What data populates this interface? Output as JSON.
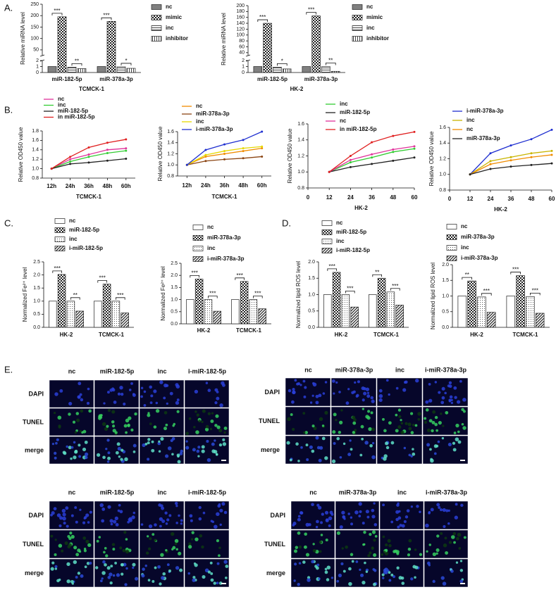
{
  "panel_labels": [
    "A.",
    "B.",
    "C.",
    "D.",
    "E."
  ],
  "chart_data": [
    {
      "type": "bar",
      "ylabel": "Relative miRNA level",
      "xlabel": "TCMCK-1",
      "categories": [
        "miR-182-5p",
        "miR-378a-3p"
      ],
      "series": [
        {
          "name": "nc",
          "color": "#808080",
          "pattern": "solid",
          "values": [
            1,
            1
          ]
        },
        {
          "name": "mimic",
          "color": "#222222",
          "pattern": "checker",
          "values": [
            195,
            175
          ]
        },
        {
          "name": "inc",
          "color": "#444444",
          "pattern": "hlines",
          "values": [
            0.9,
            0.95
          ]
        },
        {
          "name": "inhibitor",
          "color": "#444444",
          "pattern": "vlines",
          "values": [
            0.65,
            0.7
          ]
        }
      ],
      "ylim": [
        0,
        250
      ],
      "axis_break": [
        2,
        25
      ],
      "yticks": [
        0,
        1,
        2,
        50,
        100,
        150,
        200,
        250
      ],
      "significance": [
        [
          "***",
          "**"
        ],
        [
          "***",
          "*"
        ]
      ]
    },
    {
      "type": "bar",
      "ylabel": "Relative miRNA level",
      "xlabel": "HK-2",
      "categories": [
        "miR-182-5p",
        "miR-378a-3p"
      ],
      "series": [
        {
          "name": "nc",
          "color": "#808080",
          "pattern": "solid",
          "values": [
            1,
            1
          ]
        },
        {
          "name": "mimic",
          "color": "#222222",
          "pattern": "checker",
          "values": [
            140,
            165
          ]
        },
        {
          "name": "inc",
          "color": "#444444",
          "pattern": "hlines",
          "values": [
            0.9,
            1
          ]
        },
        {
          "name": "inhibitor",
          "color": "#444444",
          "pattern": "vlines",
          "values": [
            0.6,
            0.2
          ]
        }
      ],
      "ylim": [
        0,
        200
      ],
      "axis_break": [
        2,
        30
      ],
      "yticks": [
        0,
        1,
        2,
        40,
        60,
        80,
        100,
        120,
        140,
        160,
        180,
        200
      ],
      "significance": [
        [
          "***",
          "*"
        ],
        [
          "***",
          "**"
        ]
      ]
    },
    {
      "type": "line",
      "ylabel": "Relative OD450 value",
      "xlabel": "TCMCK-1",
      "categories": [
        "12h",
        "24h",
        "36h",
        "48h",
        "60h"
      ],
      "series": [
        {
          "name": "nc",
          "color": "#e0329a",
          "values": [
            1.0,
            1.2,
            1.3,
            1.4,
            1.43
          ]
        },
        {
          "name": "inc",
          "color": "#33cc33",
          "values": [
            1.0,
            1.15,
            1.25,
            1.33,
            1.38
          ]
        },
        {
          "name": "miR-182-5p",
          "color": "#222222",
          "values": [
            1.0,
            1.1,
            1.13,
            1.17,
            1.21
          ]
        },
        {
          "name": "in miR-182-5p",
          "color": "#e02020",
          "values": [
            1.0,
            1.25,
            1.45,
            1.55,
            1.62
          ]
        }
      ],
      "ylim": [
        0.8,
        1.8
      ],
      "yticks": [
        0.8,
        {
          "value": 1,
          "label": "1.0"
        },
        1.2,
        1.4,
        1.6,
        1.8
      ]
    },
    {
      "type": "line",
      "ylabel": "Relative OD450 value",
      "xlabel": "TCMCK-1",
      "categories": [
        "12h",
        "24h",
        "36h",
        "48h",
        "60h"
      ],
      "series": [
        {
          "name": "nc",
          "color": "#f08c00",
          "values": [
            1.0,
            1.15,
            1.2,
            1.25,
            1.3
          ]
        },
        {
          "name": "miR-378a-3p",
          "color": "#8b4513",
          "values": [
            1.0,
            1.07,
            1.1,
            1.12,
            1.15
          ]
        },
        {
          "name": "inc",
          "color": "#e6d800",
          "values": [
            1.0,
            1.18,
            1.25,
            1.3,
            1.33
          ]
        },
        {
          "name": "i-miR-378a-3p",
          "color": "#1f2fd0",
          "values": [
            1.0,
            1.27,
            1.37,
            1.45,
            1.6
          ]
        }
      ],
      "ylim": [
        0.8,
        1.6
      ],
      "yticks": [
        0.8,
        {
          "value": 1,
          "label": "1.0"
        },
        1.2,
        1.4,
        1.6
      ]
    },
    {
      "type": "line",
      "ylabel": "Relative OD450 value",
      "xlabel": "HK-2",
      "x": [
        12,
        24,
        36,
        48,
        60
      ],
      "series": [
        {
          "name": "inc",
          "color": "#33cc33",
          "values": [
            1.0,
            1.12,
            1.18,
            1.25,
            1.29
          ]
        },
        {
          "name": "miR-182-5p",
          "color": "#222222",
          "values": [
            1.0,
            1.06,
            1.1,
            1.14,
            1.18
          ]
        },
        {
          "name": "nc",
          "color": "#e0329a",
          "values": [
            1.0,
            1.15,
            1.22,
            1.28,
            1.32
          ]
        },
        {
          "name": "in miR-182-5p",
          "color": "#e02020",
          "values": [
            1.0,
            1.2,
            1.37,
            1.45,
            1.5
          ]
        }
      ],
      "xlim": [
        0,
        60
      ],
      "xticks": [
        0,
        12,
        24,
        36,
        48,
        60
      ],
      "ylim": [
        0.8,
        1.6
      ],
      "yticks": [
        0.8,
        {
          "value": 1,
          "label": "1.0"
        },
        1.2,
        1.4,
        1.6
      ]
    },
    {
      "type": "line",
      "ylabel": "Relative OD450 value",
      "xlabel": "HK-2",
      "x": [
        12,
        24,
        36,
        48,
        60
      ],
      "series": [
        {
          "name": "i-miR-378a-3p",
          "color": "#1f2fd0",
          "values": [
            1.0,
            1.27,
            1.37,
            1.45,
            1.57
          ]
        },
        {
          "name": "inc",
          "color": "#c8b400",
          "values": [
            1.0,
            1.17,
            1.22,
            1.27,
            1.3
          ]
        },
        {
          "name": "nc",
          "color": "#f08c00",
          "values": [
            1.0,
            1.13,
            1.18,
            1.22,
            1.25
          ]
        },
        {
          "name": "miR-378a-3p",
          "color": "#222222",
          "values": [
            1.0,
            1.07,
            1.1,
            1.12,
            1.14
          ]
        }
      ],
      "xlim": [
        0,
        60
      ],
      "xticks": [
        0,
        12,
        24,
        36,
        48,
        60
      ],
      "ylim": [
        0.8,
        1.6
      ],
      "yticks": [
        0.8,
        {
          "value": 1,
          "label": "1.0"
        },
        1.2,
        1.4,
        1.6
      ]
    },
    {
      "type": "bar",
      "ylabel": "Normalized Fe²⁺ level",
      "categories": [
        "HK-2",
        "TCMCK-1"
      ],
      "series": [
        {
          "name": "nc",
          "color": "#ffffff",
          "pattern": "solid",
          "values": [
            1.0,
            1.0
          ]
        },
        {
          "name": "miR-182-5p",
          "color": "#222222",
          "pattern": "checker",
          "values": [
            2.02,
            1.65
          ]
        },
        {
          "name": "inc",
          "color": "#555555",
          "pattern": "dots",
          "values": [
            1.0,
            1.0
          ]
        },
        {
          "name": "i-miR-182-5p",
          "color": "#222222",
          "pattern": "diag",
          "values": [
            0.62,
            0.55
          ]
        }
      ],
      "ylim": [
        0,
        2.5
      ],
      "yticks": [
        {
          "value": 0,
          "label": "0.0"
        },
        0.5,
        {
          "value": 1,
          "label": "1.0"
        },
        1.5,
        {
          "value": 2,
          "label": "2.0"
        },
        2.5
      ],
      "significance": [
        [
          "***",
          "**"
        ],
        [
          "***",
          "***"
        ]
      ]
    },
    {
      "type": "bar",
      "ylabel": "Normalized Fe²⁺ level",
      "categories": [
        "HK-2",
        "TCMCK-1"
      ],
      "series": [
        {
          "name": "nc",
          "color": "#ffffff",
          "pattern": "solid",
          "values": [
            1.0,
            1.0
          ]
        },
        {
          "name": "miR-378a-3p",
          "color": "#222222",
          "pattern": "checker",
          "values": [
            1.85,
            1.75
          ]
        },
        {
          "name": "inc",
          "color": "#555555",
          "pattern": "dots",
          "values": [
            1.0,
            1.0
          ]
        },
        {
          "name": "i-miR-378a-3p",
          "color": "#222222",
          "pattern": "diag",
          "values": [
            0.52,
            0.62
          ]
        }
      ],
      "ylim": [
        0,
        2.5
      ],
      "yticks": [
        {
          "value": 0,
          "label": "0.0"
        },
        0.5,
        {
          "value": 1,
          "label": "1.0"
        },
        1.5,
        {
          "value": 2,
          "label": "2.0"
        },
        2.5
      ],
      "significance": [
        [
          "***",
          "***"
        ],
        [
          "***",
          "***"
        ]
      ]
    },
    {
      "type": "bar",
      "ylabel": "Normalized lipid ROS level",
      "categories": [
        "HK-2",
        "TCMCK-1"
      ],
      "series": [
        {
          "name": "nc",
          "color": "#ffffff",
          "pattern": "solid",
          "values": [
            1.0,
            1.0
          ]
        },
        {
          "name": "miR-182-5p",
          "color": "#222222",
          "pattern": "checker",
          "values": [
            1.68,
            1.5
          ]
        },
        {
          "name": "inc",
          "color": "#555555",
          "pattern": "dots",
          "values": [
            1.0,
            1.08
          ]
        },
        {
          "name": "i-miR-182-5p",
          "color": "#222222",
          "pattern": "diag",
          "values": [
            0.62,
            0.68
          ]
        }
      ],
      "ylim": [
        0,
        2
      ],
      "yticks": [
        {
          "value": 0,
          "label": "0.0"
        },
        0.5,
        {
          "value": 1,
          "label": "1.0"
        },
        1.5,
        {
          "value": 2,
          "label": "2.0"
        }
      ],
      "significance": [
        [
          "***",
          "***"
        ],
        [
          "**",
          "***"
        ]
      ]
    },
    {
      "type": "bar",
      "ylabel": "Normalized lipid ROS level",
      "categories": [
        "HK-2",
        "TCMCK-1"
      ],
      "series": [
        {
          "name": "nc",
          "color": "#ffffff",
          "pattern": "solid",
          "values": [
            1.0,
            1.0
          ]
        },
        {
          "name": "miR-378a-3p",
          "color": "#222222",
          "pattern": "checker",
          "values": [
            1.48,
            1.65
          ]
        },
        {
          "name": "inc",
          "color": "#555555",
          "pattern": "dots",
          "values": [
            0.97,
            0.98
          ]
        },
        {
          "name": "i-miR-378a-3p",
          "color": "#222222",
          "pattern": "diag",
          "values": [
            0.48,
            0.45
          ]
        }
      ],
      "ylim": [
        0,
        2
      ],
      "yticks": [
        {
          "value": 0,
          "label": "0.0"
        },
        0.5,
        {
          "value": 1,
          "label": "1.0"
        },
        1.5,
        {
          "value": 2,
          "label": "2.0"
        }
      ],
      "significance": [
        [
          "**",
          "***"
        ],
        [
          "***",
          "***"
        ]
      ]
    }
  ],
  "tunel_panels": [
    {
      "columns": [
        "nc",
        "miR-182-5p",
        "inc",
        "i-miR-182-5p"
      ],
      "rows": [
        "DAPI",
        "TUNEL",
        "merge"
      ]
    },
    {
      "columns": [
        "nc",
        "miR-378a-3p",
        "inc",
        "i-miR-378a-3p"
      ],
      "rows": [
        "DAPI",
        "TUNEL",
        "merge"
      ]
    },
    {
      "columns": [
        "nc",
        "miR-182-5p",
        "inc",
        "i-miR-182-5p"
      ],
      "rows": [
        "DAPI",
        "TUNEL",
        "merge"
      ]
    },
    {
      "columns": [
        "nc",
        "miR-378a-3p",
        "inc",
        "i-miR-378a-3p"
      ],
      "rows": [
        "DAPI",
        "TUNEL",
        "merge"
      ]
    }
  ]
}
